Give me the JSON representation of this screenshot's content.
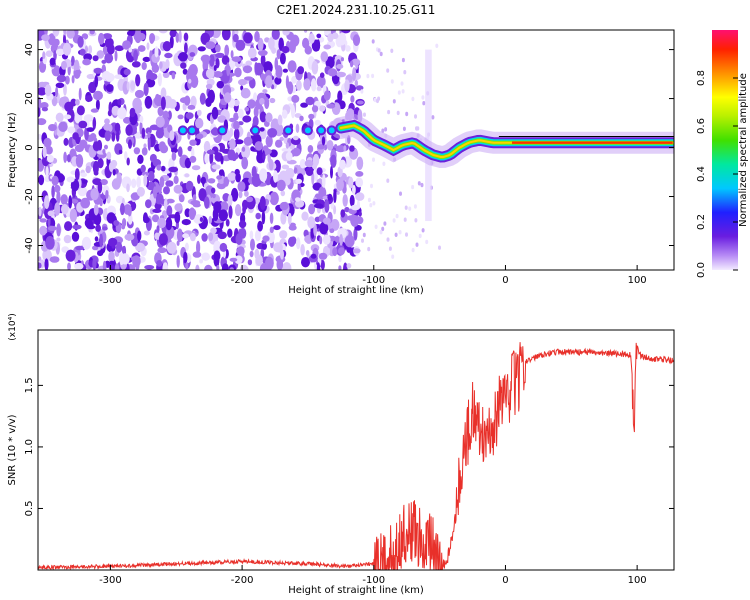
{
  "title": "C2E1.2024.231.10.25.G11",
  "chart_data": [
    {
      "type": "heatmap",
      "xlabel": "Height of straight line (km)",
      "ylabel": "Frequency (Hz)",
      "xlim": [
        -355,
        128
      ],
      "ylim": [
        -50,
        48
      ],
      "x_ticks": [
        -300,
        -200,
        -100,
        0,
        100
      ],
      "y_ticks": [
        -40,
        -20,
        0,
        20,
        40
      ],
      "colorbar": {
        "label": "Normalized spectral amplitude",
        "range": [
          0,
          1
        ],
        "ticks": [
          0.0,
          0.2,
          0.4,
          0.6,
          0.8
        ]
      },
      "ridge": {
        "x": [
          -125,
          -115,
          -108,
          -100,
          -92,
          -85,
          -78,
          -70,
          -62,
          -55,
          -48,
          -42,
          -35,
          -28,
          -20,
          -10,
          0,
          20,
          60,
          100,
          128
        ],
        "y": [
          8,
          9,
          7,
          3,
          1,
          -1,
          1,
          2,
          -1,
          -3,
          -4,
          -3,
          0,
          2,
          3,
          2,
          2,
          2,
          2,
          2,
          2
        ]
      },
      "noise_until_x": -110
    },
    {
      "type": "line",
      "xlabel": "Height of straight line (km)",
      "ylabel": "SNR (10 * v/v)",
      "y_multiplier": "(x10⁴)",
      "xlim": [
        -355,
        128
      ],
      "ylim": [
        0,
        1.95
      ],
      "x_ticks": [
        -300,
        -200,
        -100,
        0,
        100
      ],
      "y_ticks": [
        0.5,
        1.0,
        1.5
      ],
      "color": "#e8302a",
      "series": [
        {
          "x": [
            -355,
            -300,
            -250,
            -200,
            -150,
            -120,
            -100,
            -90,
            -80,
            -75,
            -70,
            -65,
            -60,
            -55,
            -50,
            -45,
            -40,
            -35,
            -30,
            -25,
            -20,
            -15,
            -10,
            -5,
            0,
            5,
            10,
            15,
            20,
            25,
            30,
            40,
            60,
            80,
            95,
            98,
            100,
            103,
            110,
            128
          ],
          "y": [
            0.02,
            0.03,
            0.05,
            0.07,
            0.05,
            0.03,
            0.05,
            0.1,
            0.25,
            0.35,
            0.4,
            0.32,
            0.3,
            0.25,
            0.05,
            0.05,
            0.3,
            0.8,
            1.1,
            1.35,
            1.25,
            1.1,
            1.2,
            1.35,
            1.45,
            1.55,
            1.62,
            1.68,
            1.72,
            1.74,
            1.76,
            1.77,
            1.77,
            1.76,
            1.75,
            1.3,
            1.8,
            1.74,
            1.72,
            1.7
          ]
        }
      ]
    }
  ]
}
